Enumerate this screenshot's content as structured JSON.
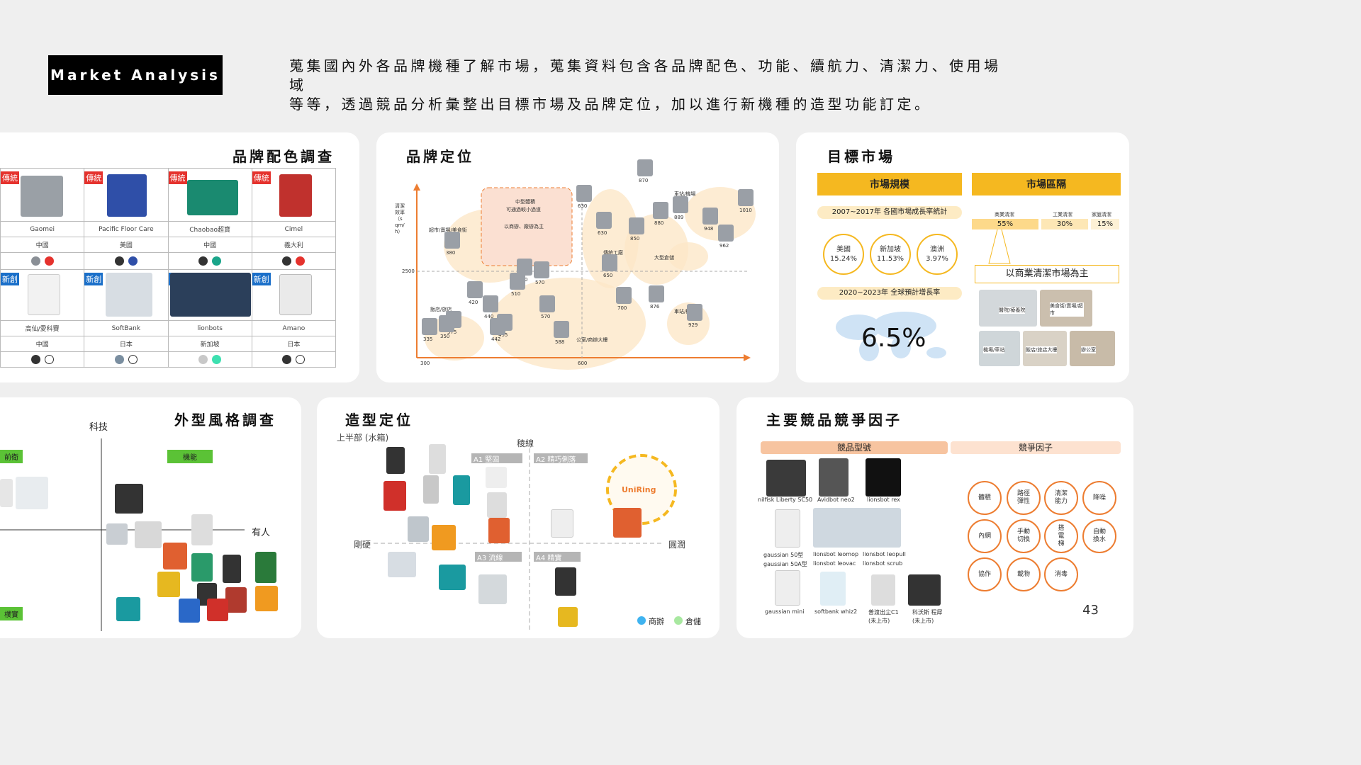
{
  "header": {
    "tag": "Market Analysis",
    "intro_line1": "蒐集國內外各品牌機種了解市場，蒐集資料包含各品牌配色、功能、續航力、清潔力、使用場域",
    "intro_line2": "等等，透過競品分析彙整出目標市場及品牌定位，加以進行新機種的造型功能訂定。"
  },
  "color_survey": {
    "title": "品牌配色調查",
    "rows": [
      {
        "badge": "傳統",
        "cells": [
          {
            "brand": "Gaomei",
            "country": "中國",
            "colors": [
              "#8a8f96",
              "#e5322d"
            ]
          },
          {
            "brand": "Pacific Floor Care",
            "country": "美國",
            "colors": [
              "#333333",
              "#2f4fa8"
            ]
          },
          {
            "brand": "Chaobao超寶",
            "country": "中國",
            "colors": [
              "#333333",
              "#1aa58a"
            ]
          },
          {
            "brand": "Cimel",
            "country": "義大利",
            "colors": [
              "#333333",
              "#e5322d"
            ]
          }
        ]
      },
      {
        "badge": "新創",
        "cells": [
          {
            "brand": "高仙/愛科賽",
            "country": "中國",
            "colors": [
              "#333333",
              "#ffffff"
            ]
          },
          {
            "brand": "SoftBank",
            "country": "日本",
            "colors": [
              "#7a8ea0",
              "#ffffff"
            ]
          },
          {
            "brand": "lionbots",
            "country": "新加坡",
            "colors": [
              "#c8c8c8",
              "#3de0b0"
            ]
          },
          {
            "brand": "Amano",
            "country": "日本",
            "colors": [
              "#333333",
              "#ffffff"
            ]
          }
        ]
      }
    ]
  },
  "brand_position": {
    "title": "品牌定位",
    "y_axis": "清潔效率（sqm/h）",
    "y_tick": "2500",
    "x_ticks": [
      "300",
      "600"
    ],
    "box_line1": "中型體積",
    "box_line2": "可通過較小過道",
    "box_line3": "以商辦、廠辦為主",
    "labels": [
      "超市/賣場/美食街",
      "飯店/旅店",
      "公室/商辦大樓",
      "傳統工廠",
      "大型倉儲",
      "車站/機場",
      "車站/機場"
    ],
    "numbers": [
      "870",
      "630",
      "880",
      "889",
      "948",
      "1010",
      "962",
      "630",
      "850",
      "380",
      "520",
      "570",
      "510",
      "420",
      "440",
      "375",
      "335",
      "350",
      "455",
      "442",
      "570",
      "588",
      "650",
      "700",
      "876",
      "929"
    ]
  },
  "target_market": {
    "title": "目標市場",
    "scale_header": "市場規模",
    "segment_header": "市場區隔",
    "growth_label": "2007~2017年 各國市場成長率統計",
    "countries": [
      {
        "name": "美國",
        "rate": "15.24%"
      },
      {
        "name": "新加坡",
        "rate": "11.53%"
      },
      {
        "name": "澳洲",
        "rate": "3.97%"
      }
    ],
    "forecast_label": "2020~2023年 全球預計增長率",
    "forecast_value": "6.5%",
    "segments": [
      {
        "name": "商業清潔",
        "pct": "55%"
      },
      {
        "name": "工業清潔",
        "pct": "30%"
      },
      {
        "name": "家庭清潔",
        "pct": "15%"
      }
    ],
    "focus": "以商業清潔市場為主",
    "venues": [
      "醫院/療養院",
      "美食街/賣場/超市",
      "機場/車站",
      "飯店/旅店大樓",
      "辦公室"
    ]
  },
  "style_survey": {
    "title": "外型風格調查",
    "axis_top": "科技",
    "axis_right": "有人",
    "labels": [
      "前衛",
      "機能",
      "樸實"
    ]
  },
  "form_position": {
    "title": "造型定位",
    "top_label": "上半部 (水箱)",
    "edge_label": "稜線",
    "left_label": "剛硬",
    "right_label": "圓潤",
    "quadrants": [
      "A1 堅固",
      "A2 精巧俐落",
      "A3 流線",
      "A4 精實"
    ],
    "brand": "UniRing",
    "legend": [
      "商辦",
      "倉儲"
    ]
  },
  "competitors": {
    "title": "主要競品競爭因子",
    "models_header": "競品型號",
    "factors_header": "競爭因子",
    "models": [
      "nilfisk Liberty SC50",
      "Avidbot neo2",
      "lionsbot rex",
      "gaussian 50型",
      "gaussian 50A型",
      "lionsbot leomop",
      "lionsbot leovac",
      "lionsbot leopull",
      "lionsbot scrub",
      "gaussian mini",
      "softbank whiz2",
      "普渡出尘C1",
      "(未上市)",
      "科沃斯 程犀",
      "(未上市)"
    ],
    "factors": [
      "體積",
      "路徑彈性",
      "清潔能力",
      "降噪",
      "內網",
      "手動切換",
      "搭電梯",
      "自動換水",
      "協作",
      "載物",
      "消毒"
    ]
  },
  "page_number": "43",
  "colors": {
    "accent": "#ed7d31",
    "yellow": "#f5b820",
    "green": "#5bc236"
  }
}
